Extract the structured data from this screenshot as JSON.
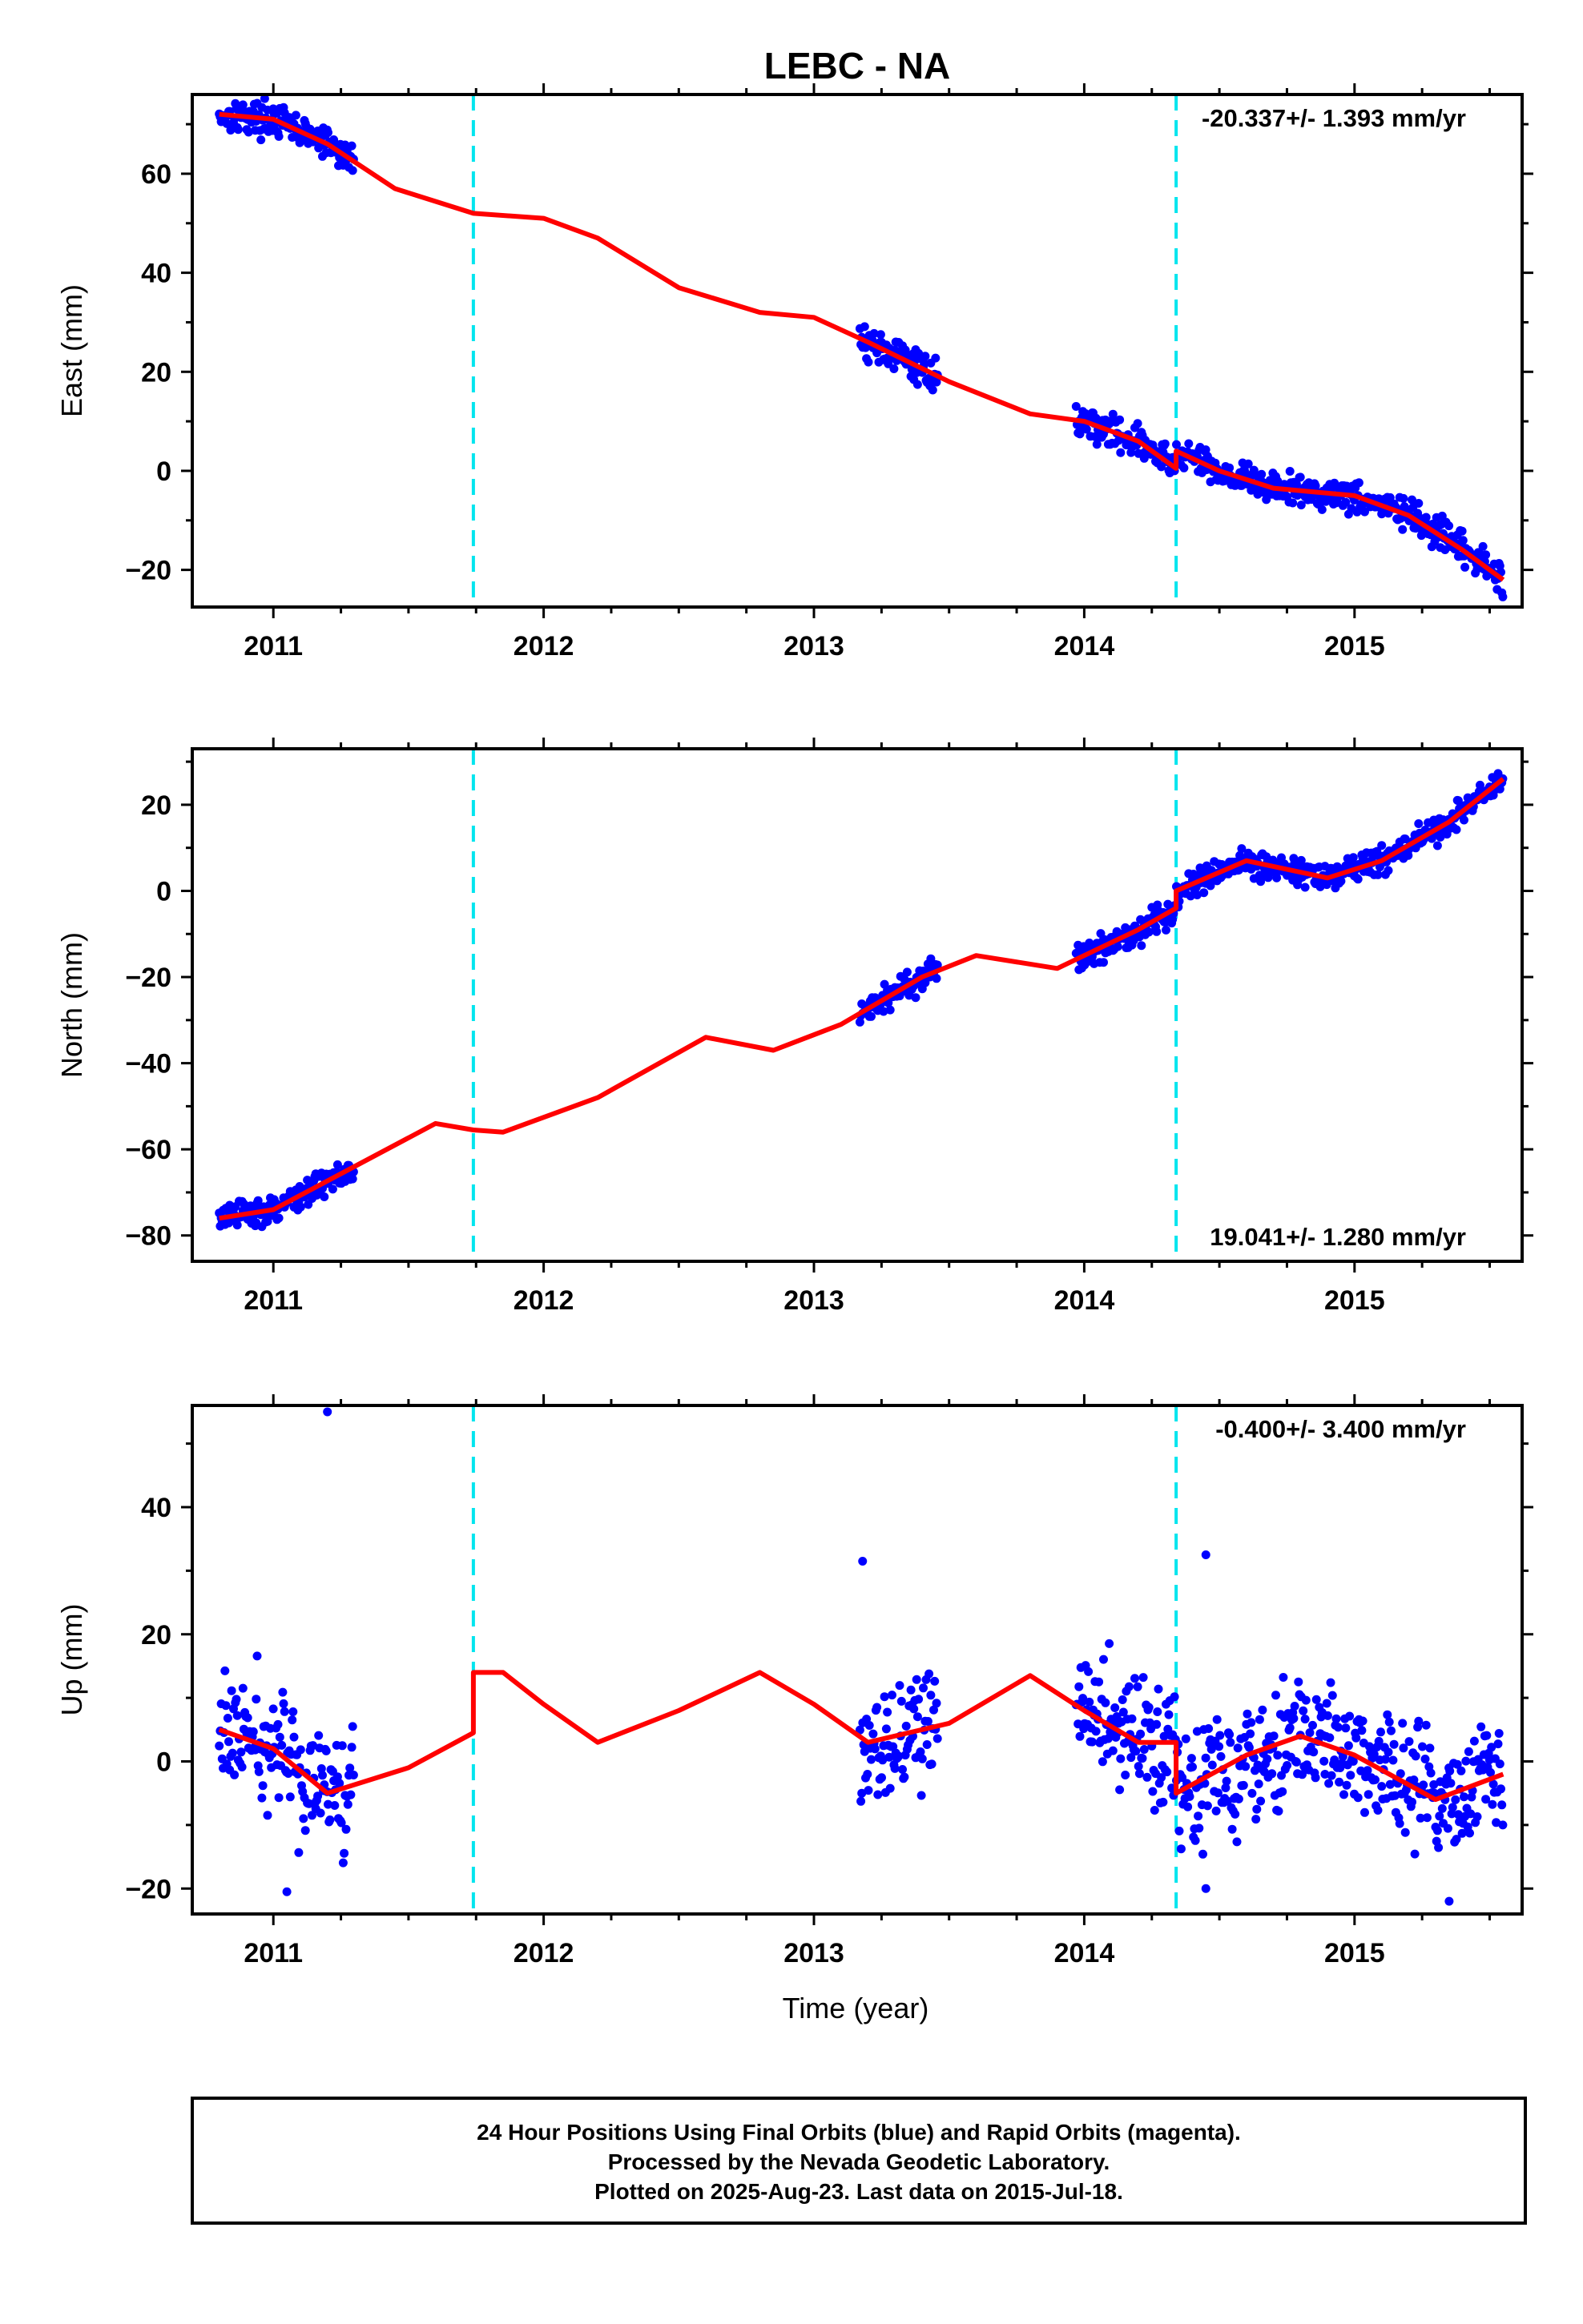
{
  "title": "LEBC - NA",
  "xlabel": "Time (year)",
  "caption": [
    "24 Hour Positions Using Final Orbits (blue) and Rapid Orbits (magenta).",
    "Processed by the Nevada Geodetic Laboratory.",
    "Plotted on 2025-Aug-23. Last data on 2015-Jul-18."
  ],
  "colors": {
    "data": "#0000ff",
    "model": "#ff0000",
    "steps": "#00e5ee",
    "frame": "#000000"
  },
  "chart_data": [
    {
      "type": "scatter",
      "name": "east",
      "ylabel": "East (mm)",
      "rate_text": "-20.337+/- 1.393 mm/yr",
      "xlim": [
        2010.7,
        2015.62
      ],
      "ylim": [
        -27.5,
        76
      ],
      "x_ticks": [
        2011,
        2012,
        2013,
        2014,
        2015
      ],
      "y_ticks": [
        -20,
        0,
        20,
        40,
        60
      ],
      "step_epochs": [
        2011.74,
        2014.34
      ],
      "data_spans": [
        [
          2010.8,
          2011.3
        ],
        [
          2013.17,
          2013.46
        ],
        [
          2013.97,
          2015.55
        ]
      ],
      "model_knots": [
        [
          2010.8,
          72
        ],
        [
          2011.0,
          71
        ],
        [
          2011.2,
          66
        ],
        [
          2011.45,
          57
        ],
        [
          2011.74,
          52
        ],
        [
          2012.0,
          51
        ],
        [
          2012.2,
          47
        ],
        [
          2012.5,
          37
        ],
        [
          2012.8,
          32
        ],
        [
          2013.0,
          31
        ],
        [
          2013.2,
          26
        ],
        [
          2013.5,
          18
        ],
        [
          2013.8,
          11.5
        ],
        [
          2014.0,
          10
        ],
        [
          2014.2,
          6
        ],
        [
          2014.34,
          0.5
        ],
        [
          2014.34,
          4
        ],
        [
          2014.5,
          0
        ],
        [
          2014.7,
          -3.5
        ],
        [
          2015.0,
          -5
        ],
        [
          2015.2,
          -9
        ],
        [
          2015.4,
          -16
        ],
        [
          2015.55,
          -22
        ]
      ],
      "noise_mm": 2
    },
    {
      "type": "scatter",
      "name": "north",
      "ylabel": "North (mm)",
      "rate_text": "19.041+/- 1.280 mm/yr",
      "xlim": [
        2010.7,
        2015.62
      ],
      "ylim": [
        -86,
        33
      ],
      "x_ticks": [
        2011,
        2012,
        2013,
        2014,
        2015
      ],
      "y_ticks": [
        -80,
        -60,
        -40,
        -20,
        0,
        20
      ],
      "step_epochs": [
        2011.74,
        2014.34
      ],
      "data_spans": [
        [
          2010.8,
          2011.3
        ],
        [
          2013.17,
          2013.46
        ],
        [
          2013.97,
          2015.55
        ]
      ],
      "model_knots": [
        [
          2010.8,
          -76
        ],
        [
          2011.0,
          -74
        ],
        [
          2011.3,
          -64
        ],
        [
          2011.6,
          -54
        ],
        [
          2011.74,
          -55.5
        ],
        [
          2011.85,
          -56
        ],
        [
          2012.2,
          -48
        ],
        [
          2012.6,
          -34
        ],
        [
          2012.85,
          -37
        ],
        [
          2013.1,
          -31
        ],
        [
          2013.4,
          -20
        ],
        [
          2013.6,
          -15
        ],
        [
          2013.9,
          -18
        ],
        [
          2014.2,
          -9
        ],
        [
          2014.34,
          -4
        ],
        [
          2014.34,
          0
        ],
        [
          2014.6,
          7
        ],
        [
          2014.9,
          3
        ],
        [
          2015.1,
          7
        ],
        [
          2015.35,
          16
        ],
        [
          2015.55,
          26
        ]
      ],
      "noise_mm": 2
    },
    {
      "type": "scatter",
      "name": "up",
      "ylabel": "Up (mm)",
      "rate_text": "-0.400+/- 3.400 mm/yr",
      "xlim": [
        2010.7,
        2015.62
      ],
      "ylim": [
        -24,
        56
      ],
      "x_ticks": [
        2011,
        2012,
        2013,
        2014,
        2015
      ],
      "y_ticks": [
        -20,
        0,
        20,
        40
      ],
      "step_epochs": [
        2011.74,
        2014.34
      ],
      "data_spans": [
        [
          2010.8,
          2011.3
        ],
        [
          2013.17,
          2013.46
        ],
        [
          2013.97,
          2015.55
        ]
      ],
      "model_knots": [
        [
          2010.8,
          5
        ],
        [
          2011.0,
          2
        ],
        [
          2011.2,
          -5
        ],
        [
          2011.5,
          -1
        ],
        [
          2011.74,
          4.5
        ],
        [
          2011.74,
          14
        ],
        [
          2011.85,
          14
        ],
        [
          2012.0,
          9
        ],
        [
          2012.2,
          3
        ],
        [
          2012.5,
          8
        ],
        [
          2012.8,
          14
        ],
        [
          2013.0,
          9
        ],
        [
          2013.2,
          3
        ],
        [
          2013.5,
          6
        ],
        [
          2013.8,
          13.5
        ],
        [
          2014.0,
          8
        ],
        [
          2014.2,
          3
        ],
        [
          2014.34,
          3
        ],
        [
          2014.34,
          -5
        ],
        [
          2014.6,
          1
        ],
        [
          2014.8,
          4
        ],
        [
          2015.0,
          1
        ],
        [
          2015.3,
          -6
        ],
        [
          2015.55,
          -2
        ]
      ],
      "noise_mm": 6,
      "outliers": [
        [
          2011.2,
          55
        ],
        [
          2013.18,
          31.5
        ],
        [
          2014.45,
          32.5
        ],
        [
          2011.05,
          -20.5
        ],
        [
          2015.35,
          -22
        ],
        [
          2014.45,
          -20
        ]
      ]
    }
  ]
}
